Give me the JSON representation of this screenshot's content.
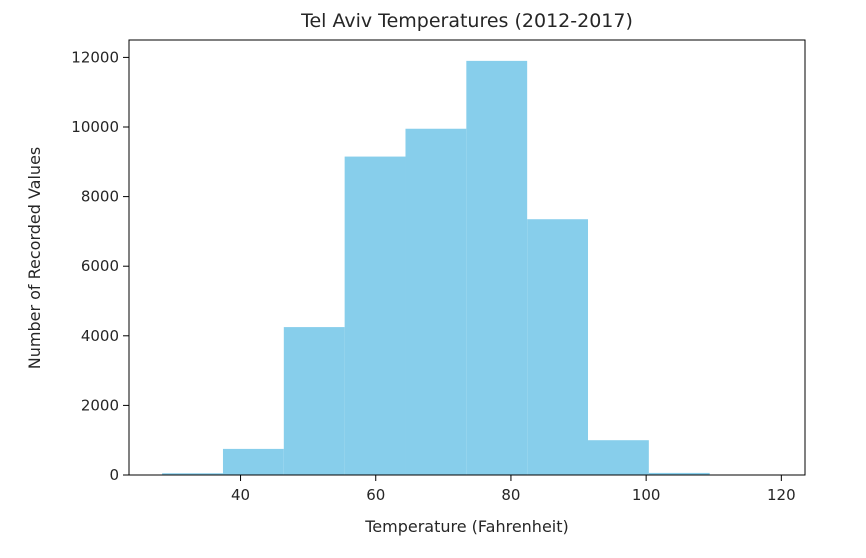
{
  "chart_data": {
    "type": "bar",
    "title": "Tel Aviv Temperatures (2012-2017)",
    "xlabel": "Temperature (Fahrenheit)",
    "ylabel": "Number of Recorded Values",
    "bin_edges": [
      28.4,
      37.4,
      46.4,
      55.4,
      64.4,
      73.4,
      82.4,
      91.4,
      100.4,
      109.4,
      118.4
    ],
    "values": [
      50,
      750,
      4250,
      9150,
      9950,
      11900,
      7350,
      1000,
      60,
      10
    ],
    "xlim": [
      23.5,
      123.5
    ],
    "ylim": [
      0,
      12500
    ],
    "xticks": [
      40,
      60,
      80,
      100,
      120
    ],
    "yticks": [
      0,
      2000,
      4000,
      6000,
      8000,
      10000,
      12000
    ],
    "bar_color": "#87ceeb",
    "grid": false
  }
}
